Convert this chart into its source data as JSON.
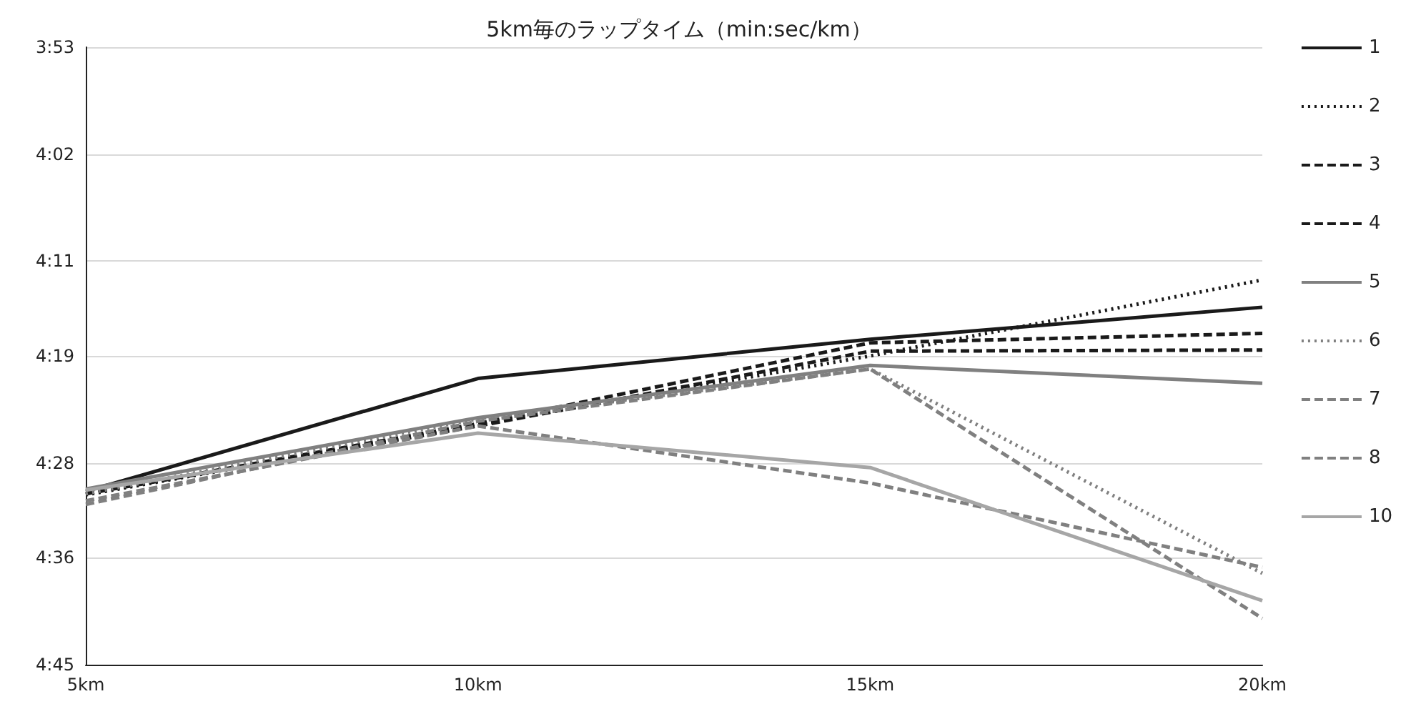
{
  "chart_data": {
    "type": "line",
    "title": "5km毎のラップタイム（min:sec/km）",
    "categories": [
      "5km",
      "10km",
      "15km",
      "20km"
    ],
    "ylim": [
      285,
      233
    ],
    "yticks": [
      {
        "value": 233,
        "label": "3:53"
      },
      {
        "value": 242,
        "label": "4:02"
      },
      {
        "value": 251,
        "label": "4:11"
      },
      {
        "value": 259,
        "label": "4:19"
      },
      {
        "value": 268,
        "label": "4:28"
      },
      {
        "value": 276,
        "label": "4:36"
      },
      {
        "value": 285,
        "label": "4:45"
      }
    ],
    "grid": "y",
    "legend": "right",
    "marker": "none",
    "series": [
      {
        "name": "1",
        "color": "#1a1a1a",
        "line_style": "solid",
        "values": [
          270.4,
          260.9,
          257.6,
          254.9
        ]
      },
      {
        "name": "2",
        "color": "#1a1a1a",
        "line_style": "dotted",
        "values": [
          270.7,
          264.8,
          259.0,
          252.6
        ]
      },
      {
        "name": "3",
        "color": "#1a1a1a",
        "line_style": "dashed",
        "values": [
          270.6,
          264.7,
          257.9,
          257.1
        ]
      },
      {
        "name": "4",
        "color": "#1a1a1a",
        "line_style": "dashed",
        "values": [
          270.6,
          264.9,
          258.6,
          258.5
        ]
      },
      {
        "name": "5",
        "color": "#808080",
        "line_style": "solid",
        "values": [
          270.2,
          264.2,
          259.8,
          261.3
        ]
      },
      {
        "name": "6",
        "color": "#808080",
        "line_style": "dotted",
        "values": [
          270.6,
          264.3,
          260.1,
          277.3
        ]
      },
      {
        "name": "7",
        "color": "#808080",
        "line_style": "dashed",
        "values": [
          271.5,
          264.5,
          260.1,
          281.1
        ]
      },
      {
        "name": "8",
        "color": "#808080",
        "line_style": "dashed",
        "values": [
          271.2,
          264.9,
          269.7,
          276.8
        ]
      },
      {
        "name": "10",
        "color": "#a6a6a6",
        "line_style": "solid",
        "values": [
          270.3,
          265.5,
          268.4,
          279.6
        ]
      }
    ]
  }
}
